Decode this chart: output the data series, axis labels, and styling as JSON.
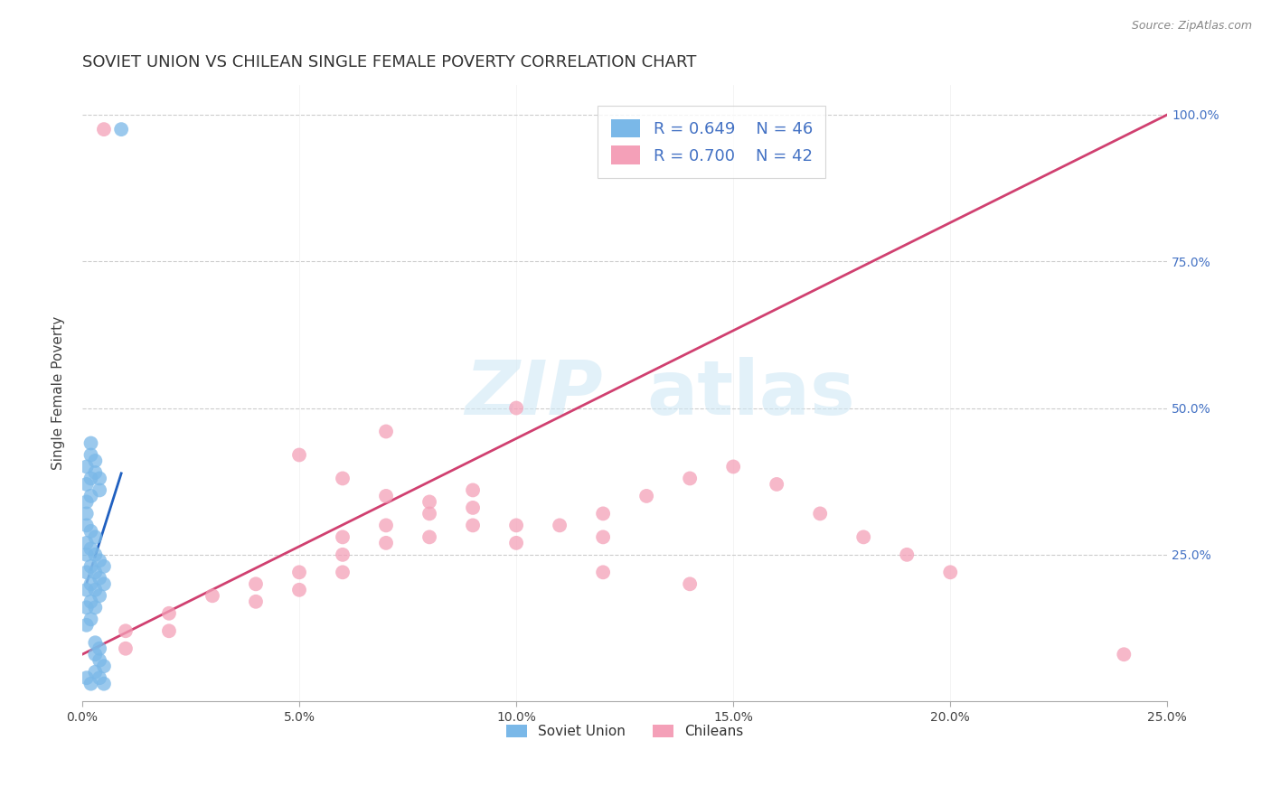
{
  "title": "SOVIET UNION VS CHILEAN SINGLE FEMALE POVERTY CORRELATION CHART",
  "source": "Source: ZipAtlas.com",
  "ylabel": "Single Female Poverty",
  "xlim": [
    0.0,
    0.25
  ],
  "ylim": [
    0.0,
    1.05
  ],
  "xticks": [
    0.0,
    0.05,
    0.1,
    0.15,
    0.2,
    0.25
  ],
  "yticks": [
    0.25,
    0.5,
    0.75,
    1.0
  ],
  "xticklabels": [
    "0.0%",
    "5.0%",
    "10.0%",
    "15.0%",
    "20.0%",
    "25.0%"
  ],
  "yticklabels_right": [
    "25.0%",
    "50.0%",
    "75.0%",
    "100.0%"
  ],
  "soviet_color": "#7ab8e8",
  "chilean_color": "#f4a0b8",
  "soviet_line_color": "#2060c0",
  "chilean_line_color": "#d04070",
  "R_soviet": 0.649,
  "N_soviet": 46,
  "R_chilean": 0.7,
  "N_chilean": 42,
  "legend_labels": [
    "Soviet Union",
    "Chileans"
  ],
  "title_fontsize": 13,
  "axis_label_fontsize": 11,
  "tick_fontsize": 10,
  "soviet_points_x": [
    0.009,
    0.001,
    0.001,
    0.001,
    0.001,
    0.001,
    0.001,
    0.001,
    0.001,
    0.002,
    0.002,
    0.002,
    0.002,
    0.002,
    0.002,
    0.003,
    0.003,
    0.003,
    0.003,
    0.003,
    0.004,
    0.004,
    0.004,
    0.005,
    0.005,
    0.001,
    0.001,
    0.001,
    0.002,
    0.002,
    0.003,
    0.003,
    0.004,
    0.004,
    0.005,
    0.001,
    0.002,
    0.003,
    0.004,
    0.005,
    0.002,
    0.002,
    0.003,
    0.003,
    0.004,
    0.004
  ],
  "soviet_points_y": [
    0.975,
    0.32,
    0.3,
    0.27,
    0.25,
    0.22,
    0.19,
    0.16,
    0.13,
    0.29,
    0.26,
    0.23,
    0.2,
    0.17,
    0.14,
    0.28,
    0.25,
    0.22,
    0.19,
    0.16,
    0.24,
    0.21,
    0.18,
    0.23,
    0.2,
    0.4,
    0.37,
    0.34,
    0.38,
    0.35,
    0.1,
    0.08,
    0.09,
    0.07,
    0.06,
    0.04,
    0.03,
    0.05,
    0.04,
    0.03,
    0.44,
    0.42,
    0.41,
    0.39,
    0.38,
    0.36
  ],
  "chilean_points_x": [
    0.005,
    0.01,
    0.01,
    0.02,
    0.02,
    0.03,
    0.04,
    0.04,
    0.05,
    0.05,
    0.06,
    0.06,
    0.06,
    0.07,
    0.07,
    0.07,
    0.08,
    0.08,
    0.09,
    0.09,
    0.1,
    0.1,
    0.11,
    0.12,
    0.12,
    0.13,
    0.14,
    0.15,
    0.16,
    0.17,
    0.18,
    0.19,
    0.2,
    0.05,
    0.06,
    0.07,
    0.08,
    0.09,
    0.1,
    0.12,
    0.14,
    0.24
  ],
  "chilean_points_y": [
    0.975,
    0.12,
    0.09,
    0.15,
    0.12,
    0.18,
    0.2,
    0.17,
    0.22,
    0.19,
    0.25,
    0.22,
    0.28,
    0.3,
    0.27,
    0.35,
    0.28,
    0.32,
    0.33,
    0.3,
    0.3,
    0.27,
    0.3,
    0.32,
    0.28,
    0.35,
    0.38,
    0.4,
    0.37,
    0.32,
    0.28,
    0.25,
    0.22,
    0.42,
    0.38,
    0.46,
    0.34,
    0.36,
    0.5,
    0.22,
    0.2,
    0.08
  ]
}
